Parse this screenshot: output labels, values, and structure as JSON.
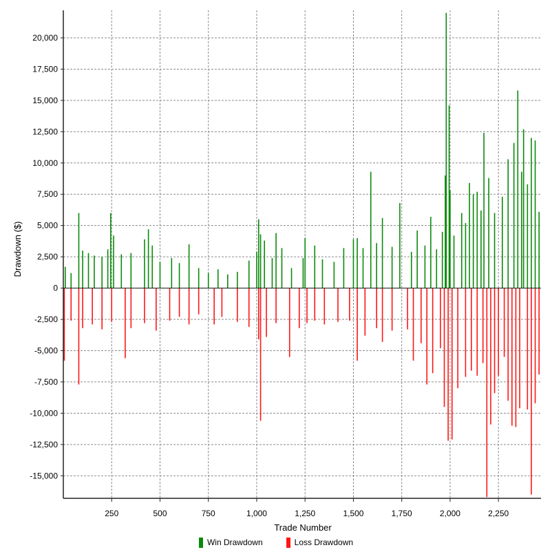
{
  "chart_data": {
    "type": "bar",
    "xlabel": "Trade Number",
    "ylabel": "Drawdown ($)",
    "xlim": [
      0,
      2470
    ],
    "ylim": [
      -16800,
      22200
    ],
    "x_ticks": [
      250,
      500,
      750,
      1000,
      1250,
      1500,
      1750,
      2000,
      2250
    ],
    "x_tick_labels": [
      "250",
      "500",
      "750",
      "1,000",
      "1,250",
      "1,500",
      "1,750",
      "2,000",
      "2,250"
    ],
    "y_ticks": [
      20000,
      17500,
      15000,
      12500,
      10000,
      7500,
      5000,
      2500,
      0,
      -2500,
      -5000,
      -7500,
      -10000,
      -12500,
      -15000
    ],
    "y_tick_labels": [
      "20,000",
      "17,500",
      "15,000",
      "12,500",
      "10,000",
      "7,500",
      "5,000",
      "2,500",
      "0",
      "-2,500",
      "-5,000",
      "-7,500",
      "-10,000",
      "-12,500",
      "-15,000"
    ],
    "grid": true,
    "legend_position": "bottom-center",
    "series": [
      {
        "name": "Win Drawdown",
        "color": "#0a8a0a",
        "points": [
          [
            10,
            1700
          ],
          [
            40,
            1200
          ],
          [
            80,
            6000
          ],
          [
            100,
            3000
          ],
          [
            130,
            2800
          ],
          [
            160,
            2600
          ],
          [
            200,
            2500
          ],
          [
            230,
            3100
          ],
          [
            245,
            6000
          ],
          [
            260,
            4200
          ],
          [
            300,
            2700
          ],
          [
            350,
            2800
          ],
          [
            420,
            3900
          ],
          [
            440,
            4700
          ],
          [
            460,
            3400
          ],
          [
            500,
            2100
          ],
          [
            560,
            2400
          ],
          [
            600,
            2000
          ],
          [
            650,
            3500
          ],
          [
            700,
            1600
          ],
          [
            750,
            1200
          ],
          [
            800,
            1500
          ],
          [
            850,
            1100
          ],
          [
            900,
            1300
          ],
          [
            960,
            2200
          ],
          [
            1000,
            2900
          ],
          [
            1010,
            5500
          ],
          [
            1020,
            4300
          ],
          [
            1040,
            3800
          ],
          [
            1080,
            2400
          ],
          [
            1100,
            4400
          ],
          [
            1130,
            3200
          ],
          [
            1180,
            1600
          ],
          [
            1240,
            2400
          ],
          [
            1250,
            4000
          ],
          [
            1300,
            3400
          ],
          [
            1340,
            2300
          ],
          [
            1400,
            2100
          ],
          [
            1450,
            3200
          ],
          [
            1500,
            3900
          ],
          [
            1520,
            4000
          ],
          [
            1550,
            3200
          ],
          [
            1590,
            9300
          ],
          [
            1620,
            3600
          ],
          [
            1650,
            5600
          ],
          [
            1700,
            3300
          ],
          [
            1740,
            6800
          ],
          [
            1800,
            2900
          ],
          [
            1830,
            4600
          ],
          [
            1870,
            3400
          ],
          [
            1900,
            5700
          ],
          [
            1930,
            3100
          ],
          [
            1960,
            4500
          ],
          [
            1975,
            9000
          ],
          [
            1980,
            22000
          ],
          [
            1995,
            14600
          ],
          [
            2000,
            7800
          ],
          [
            2020,
            4200
          ],
          [
            2060,
            6000
          ],
          [
            2080,
            5200
          ],
          [
            2100,
            8400
          ],
          [
            2120,
            7500
          ],
          [
            2140,
            7700
          ],
          [
            2160,
            6200
          ],
          [
            2175,
            12400
          ],
          [
            2200,
            8800
          ],
          [
            2230,
            6000
          ],
          [
            2270,
            7300
          ],
          [
            2300,
            10300
          ],
          [
            2330,
            11600
          ],
          [
            2350,
            15800
          ],
          [
            2370,
            9300
          ],
          [
            2380,
            12700
          ],
          [
            2400,
            8300
          ],
          [
            2420,
            12000
          ],
          [
            2440,
            11800
          ],
          [
            2460,
            6100
          ]
        ]
      },
      {
        "name": "Loss Drawdown",
        "color": "#ff1515",
        "points": [
          [
            5,
            -5800
          ],
          [
            40,
            -2600
          ],
          [
            80,
            -7700
          ],
          [
            100,
            -3200
          ],
          [
            150,
            -2900
          ],
          [
            200,
            -3300
          ],
          [
            250,
            -2700
          ],
          [
            320,
            -5600
          ],
          [
            350,
            -3200
          ],
          [
            420,
            -2800
          ],
          [
            480,
            -3400
          ],
          [
            550,
            -2600
          ],
          [
            600,
            -2300
          ],
          [
            650,
            -2900
          ],
          [
            700,
            -2100
          ],
          [
            780,
            -2900
          ],
          [
            820,
            -2300
          ],
          [
            900,
            -2700
          ],
          [
            960,
            -3100
          ],
          [
            1010,
            -4100
          ],
          [
            1020,
            -10600
          ],
          [
            1050,
            -3900
          ],
          [
            1100,
            -2800
          ],
          [
            1170,
            -5500
          ],
          [
            1220,
            -3200
          ],
          [
            1260,
            -2800
          ],
          [
            1300,
            -2600
          ],
          [
            1350,
            -2900
          ],
          [
            1420,
            -2700
          ],
          [
            1480,
            -2600
          ],
          [
            1520,
            -5800
          ],
          [
            1560,
            -3800
          ],
          [
            1620,
            -3200
          ],
          [
            1650,
            -4300
          ],
          [
            1700,
            -3400
          ],
          [
            1780,
            -3300
          ],
          [
            1810,
            -5800
          ],
          [
            1850,
            -4400
          ],
          [
            1880,
            -7700
          ],
          [
            1910,
            -6800
          ],
          [
            1950,
            -4800
          ],
          [
            1970,
            -9500
          ],
          [
            1990,
            -12200
          ],
          [
            2010,
            -12100
          ],
          [
            2040,
            -8000
          ],
          [
            2080,
            -7100
          ],
          [
            2110,
            -6600
          ],
          [
            2140,
            -7000
          ],
          [
            2170,
            -6000
          ],
          [
            2190,
            -16700
          ],
          [
            2210,
            -10900
          ],
          [
            2230,
            -8400
          ],
          [
            2250,
            -7000
          ],
          [
            2280,
            -5500
          ],
          [
            2300,
            -9000
          ],
          [
            2320,
            -11000
          ],
          [
            2340,
            -11100
          ],
          [
            2360,
            -9600
          ],
          [
            2400,
            -9700
          ],
          [
            2420,
            -16500
          ],
          [
            2440,
            -9200
          ],
          [
            2460,
            -6900
          ]
        ]
      }
    ]
  }
}
